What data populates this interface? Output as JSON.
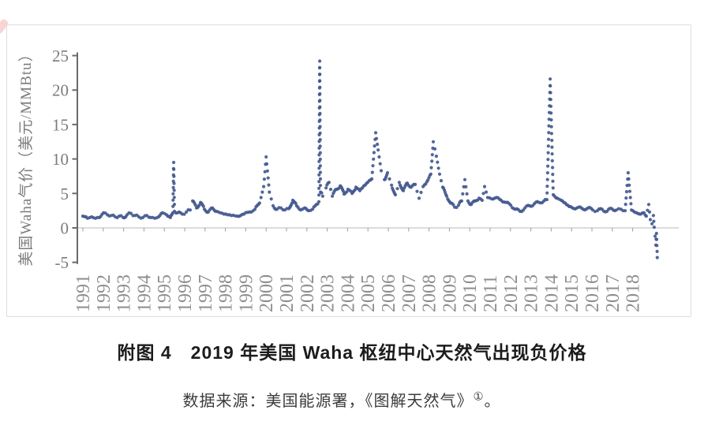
{
  "figure": {
    "caption": "附图 4　2019 年美国 Waha 枢纽中心天然气出现负价格",
    "source_prefix": "数据来源：美国能源署，《图解天然气》",
    "source_note_marker": "①",
    "source_suffix": "。"
  },
  "chart_data": {
    "type": "scatter",
    "title": "2019 年美国 Waha 枢纽中心天然气出现负价格",
    "ylabel": "美国Waha气价（美元/MMBtu）",
    "xlabel": "",
    "x_tick_labels": [
      "1991",
      "1992",
      "1993",
      "1994",
      "1995",
      "1996",
      "1997",
      "1998",
      "1999",
      "2000",
      "2001",
      "2002",
      "2003",
      "2004",
      "2005",
      "2006",
      "2007",
      "2008",
      "2009",
      "2010",
      "2011",
      "2012",
      "2013",
      "2014",
      "2015",
      "2016",
      "2017",
      "2018"
    ],
    "y_ticks": [
      "25",
      "20",
      "15",
      "10",
      "5",
      "0",
      "-5"
    ],
    "ylim": [
      -5,
      25
    ],
    "xlim": [
      1990.7,
      2019.6
    ],
    "grid": false,
    "legend": null,
    "point_color": "#44598f",
    "axis_color": "#6a6a6a",
    "baseline_color": "#c6c6c6",
    "tick_label_color": "#8e8e8e",
    "points": [
      [
        1991.0,
        1.7
      ],
      [
        1991.23,
        1.4
      ],
      [
        1991.43,
        1.6
      ],
      [
        1991.62,
        1.4
      ],
      [
        1991.81,
        1.5
      ],
      [
        1992.01,
        2.2
      ],
      [
        1992.2,
        1.9
      ],
      [
        1992.4,
        1.8
      ],
      [
        1992.59,
        1.6
      ],
      [
        1992.78,
        1.7
      ],
      [
        1992.98,
        1.5
      ],
      [
        1993.17,
        1.9
      ],
      [
        1993.36,
        2.1
      ],
      [
        1993.56,
        1.8
      ],
      [
        1993.75,
        1.6
      ],
      [
        1993.95,
        1.5
      ],
      [
        1994.14,
        1.8
      ],
      [
        1994.33,
        1.5
      ],
      [
        1994.53,
        1.4
      ],
      [
        1994.72,
        1.6
      ],
      [
        1994.91,
        2.2
      ],
      [
        1995.11,
        1.9
      ],
      [
        1995.3,
        1.5
      ],
      [
        1995.42,
        2.2
      ],
      [
        1995.46,
        9.5
      ],
      [
        1995.5,
        2.4
      ],
      [
        1995.65,
        2.2
      ],
      [
        1995.88,
        2.0
      ],
      [
        1996.08,
        2.3
      ],
      [
        1996.27,
        2.6
      ],
      [
        1996.39,
        3.9
      ],
      [
        1996.58,
        2.9
      ],
      [
        1996.78,
        3.7
      ],
      [
        1996.97,
        2.7
      ],
      [
        1997.16,
        2.3
      ],
      [
        1997.36,
        2.9
      ],
      [
        1997.55,
        2.4
      ],
      [
        1997.74,
        2.2
      ],
      [
        1998.02,
        2.0
      ],
      [
        1998.29,
        1.8
      ],
      [
        1998.6,
        1.7
      ],
      [
        1998.91,
        2.0
      ],
      [
        1999.18,
        2.3
      ],
      [
        1999.45,
        2.7
      ],
      [
        1999.68,
        3.6
      ],
      [
        1999.88,
        6.0
      ],
      [
        2000.0,
        10.3
      ],
      [
        2000.16,
        5.2
      ],
      [
        2000.34,
        3.2
      ],
      [
        2000.53,
        2.7
      ],
      [
        2000.73,
        2.9
      ],
      [
        2000.92,
        2.6
      ],
      [
        2001.12,
        2.8
      ],
      [
        2001.31,
        4.0
      ],
      [
        2001.5,
        3.2
      ],
      [
        2001.7,
        2.6
      ],
      [
        2001.89,
        2.9
      ],
      [
        2002.08,
        2.5
      ],
      [
        2002.28,
        2.7
      ],
      [
        2002.47,
        3.4
      ],
      [
        2002.59,
        3.8
      ],
      [
        2002.63,
        24.2
      ],
      [
        2002.67,
        5.2
      ],
      [
        2002.78,
        4.6
      ],
      [
        2002.94,
        5.8
      ],
      [
        2003.09,
        6.6
      ],
      [
        2003.25,
        4.6
      ],
      [
        2003.44,
        5.6
      ],
      [
        2003.64,
        6.1
      ],
      [
        2003.83,
        4.9
      ],
      [
        2004.02,
        5.6
      ],
      [
        2004.22,
        5.0
      ],
      [
        2004.41,
        5.9
      ],
      [
        2004.6,
        5.4
      ],
      [
        2004.8,
        6.1
      ],
      [
        2004.99,
        6.6
      ],
      [
        2005.19,
        7.1
      ],
      [
        2005.38,
        13.8
      ],
      [
        2005.5,
        11.3
      ],
      [
        2005.65,
        8.3
      ],
      [
        2005.81,
        7.0
      ],
      [
        2005.96,
        8.0
      ],
      [
        2006.16,
        6.2
      ],
      [
        2006.35,
        4.8
      ],
      [
        2006.54,
        6.6
      ],
      [
        2006.74,
        5.4
      ],
      [
        2006.93,
        6.5
      ],
      [
        2007.12,
        5.9
      ],
      [
        2007.32,
        6.3
      ],
      [
        2007.51,
        4.3
      ],
      [
        2007.71,
        6.0
      ],
      [
        2007.9,
        6.7
      ],
      [
        2008.09,
        7.8
      ],
      [
        2008.21,
        12.5
      ],
      [
        2008.36,
        10.4
      ],
      [
        2008.52,
        7.8
      ],
      [
        2008.67,
        5.9
      ],
      [
        2008.87,
        4.6
      ],
      [
        2009.06,
        3.6
      ],
      [
        2009.26,
        3.0
      ],
      [
        2009.45,
        3.3
      ],
      [
        2009.6,
        3.9
      ],
      [
        2009.76,
        7.0
      ],
      [
        2009.91,
        3.9
      ],
      [
        2010.07,
        3.4
      ],
      [
        2010.26,
        3.9
      ],
      [
        2010.46,
        4.3
      ],
      [
        2010.61,
        4.0
      ],
      [
        2010.73,
        6.0
      ],
      [
        2010.88,
        4.4
      ],
      [
        2011.08,
        4.2
      ],
      [
        2011.31,
        4.4
      ],
      [
        2011.54,
        4.0
      ],
      [
        2011.78,
        3.7
      ],
      [
        2012.01,
        3.3
      ],
      [
        2012.24,
        2.7
      ],
      [
        2012.47,
        2.4
      ],
      [
        2012.71,
        2.9
      ],
      [
        2012.94,
        3.2
      ],
      [
        2013.17,
        3.5
      ],
      [
        2013.4,
        3.7
      ],
      [
        2013.64,
        3.9
      ],
      [
        2013.79,
        4.1
      ],
      [
        2013.95,
        21.6
      ],
      [
        2014.1,
        4.8
      ],
      [
        2014.3,
        4.3
      ],
      [
        2014.49,
        4.0
      ],
      [
        2014.69,
        3.6
      ],
      [
        2014.88,
        3.1
      ],
      [
        2015.11,
        2.8
      ],
      [
        2015.34,
        3.0
      ],
      [
        2015.57,
        2.7
      ],
      [
        2015.81,
        2.9
      ],
      [
        2016.04,
        2.6
      ],
      [
        2016.27,
        2.5
      ],
      [
        2016.5,
        2.7
      ],
      [
        2016.74,
        2.4
      ],
      [
        2016.97,
        2.8
      ],
      [
        2017.2,
        2.6
      ],
      [
        2017.43,
        2.7
      ],
      [
        2017.63,
        2.5
      ],
      [
        2017.78,
        8.0
      ],
      [
        2017.94,
        2.6
      ],
      [
        2018.09,
        2.3
      ],
      [
        2018.25,
        2.1
      ],
      [
        2018.4,
        2.0
      ],
      [
        2018.56,
        2.2
      ],
      [
        2018.67,
        1.7
      ],
      [
        2018.79,
        3.4
      ],
      [
        2018.87,
        1.2
      ],
      [
        2018.95,
        0.6
      ],
      [
        2019.02,
        1.8
      ],
      [
        2019.06,
        0.1
      ],
      [
        2019.1,
        -1.2
      ],
      [
        2019.14,
        -2.5
      ],
      [
        2019.17,
        -0.8
      ],
      [
        2019.21,
        -4.3
      ]
    ]
  }
}
